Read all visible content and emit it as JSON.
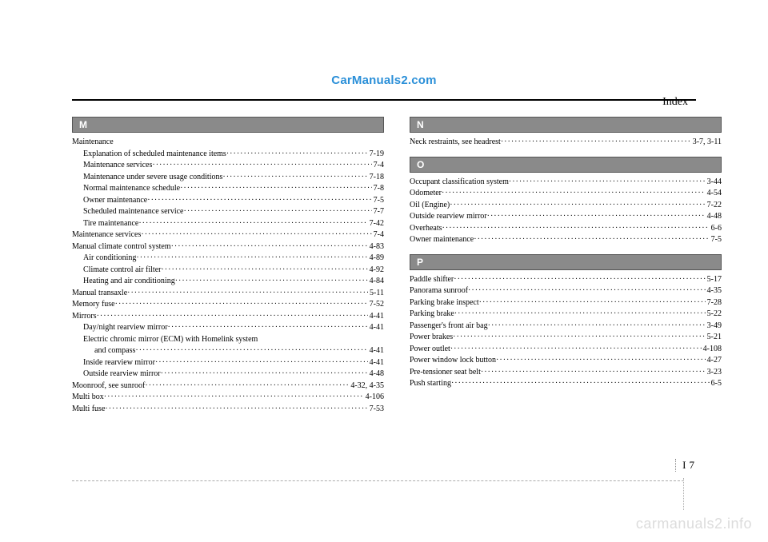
{
  "watermark_top": "CarManuals2.com",
  "index_label": "Index",
  "page_num_chapter": "I",
  "page_num_page": "7",
  "watermark_bottom": "carmanuals2.info",
  "left": {
    "sections": [
      {
        "letter": "M",
        "entries": [
          {
            "indent": 0,
            "label": "Maintenance",
            "page": ""
          },
          {
            "indent": 1,
            "label": "Explanation of scheduled maintenance items",
            "page": "7-19"
          },
          {
            "indent": 1,
            "label": "Maintenance services",
            "page": "7-4"
          },
          {
            "indent": 1,
            "label": "Maintenance under severe usage conditions",
            "page": "7-18"
          },
          {
            "indent": 1,
            "label": "Normal maintenance schedule",
            "page": "7-8"
          },
          {
            "indent": 1,
            "label": "Owner maintenance",
            "page": "7-5"
          },
          {
            "indent": 1,
            "label": "Scheduled maintenance service",
            "page": "7-7"
          },
          {
            "indent": 1,
            "label": "Tire maintenance",
            "page": "7-42"
          },
          {
            "indent": 0,
            "label": "Maintenance services",
            "page": "7-4"
          },
          {
            "indent": 0,
            "label": "Manual climate control system",
            "page": "4-83"
          },
          {
            "indent": 1,
            "label": "Air conditioning",
            "page": "4-89"
          },
          {
            "indent": 1,
            "label": "Climate control air filter",
            "page": "4-92"
          },
          {
            "indent": 1,
            "label": "Heating and air conditioning",
            "page": "4-84"
          },
          {
            "indent": 0,
            "label": "Manual transaxle",
            "page": "5-11"
          },
          {
            "indent": 0,
            "label": "Memory fuse",
            "page": "7-52"
          },
          {
            "indent": 0,
            "label": "Mirrors",
            "page": "4-41"
          },
          {
            "indent": 1,
            "label": "Day/night rearview mirror",
            "page": "4-41"
          },
          {
            "indent": 1,
            "label": "Electric chromic mirror (ECM) with Homelink system",
            "page": ""
          },
          {
            "indent": 2,
            "label": "and compass",
            "page": "4-41"
          },
          {
            "indent": 1,
            "label": "Inside rearview mirror",
            "page": "4-41"
          },
          {
            "indent": 1,
            "label": "Outside rearview mirror",
            "page": "4-48"
          },
          {
            "indent": 0,
            "label": "Moonroof, see sunroof",
            "page": "4-32, 4-35"
          },
          {
            "indent": 0,
            "label": "Multi box",
            "page": "4-106"
          },
          {
            "indent": 0,
            "label": "Multi fuse",
            "page": "7-53"
          }
        ]
      }
    ]
  },
  "right": {
    "sections": [
      {
        "letter": "N",
        "entries": [
          {
            "indent": 0,
            "label": "Neck restraints, see headrest",
            "page": "3-7, 3-11"
          }
        ]
      },
      {
        "letter": "O",
        "entries": [
          {
            "indent": 0,
            "label": "Occupant classification system",
            "page": "3-44"
          },
          {
            "indent": 0,
            "label": "Odometer",
            "page": "4-54"
          },
          {
            "indent": 0,
            "label": "Oil (Engine)",
            "page": "7-22"
          },
          {
            "indent": 0,
            "label": "Outside rearview mirror",
            "page": "4-48"
          },
          {
            "indent": 0,
            "label": "Overheats",
            "page": "6-6"
          },
          {
            "indent": 0,
            "label": "Owner maintenance",
            "page": "7-5"
          }
        ]
      },
      {
        "letter": "P",
        "entries": [
          {
            "indent": 0,
            "label": "Paddle shifter",
            "page": "5-17"
          },
          {
            "indent": 0,
            "label": "Panorama sunroof",
            "page": "4-35"
          },
          {
            "indent": 0,
            "label": "Parking brake inspect",
            "page": "7-28"
          },
          {
            "indent": 0,
            "label": "Parking brake",
            "page": "5-22"
          },
          {
            "indent": 0,
            "label": "Passenger's front air bag",
            "page": "3-49"
          },
          {
            "indent": 0,
            "label": "Power brakes",
            "page": "5-21"
          },
          {
            "indent": 0,
            "label": "Power outlet",
            "page": "4-108"
          },
          {
            "indent": 0,
            "label": "Power window lock button",
            "page": "4-27"
          },
          {
            "indent": 0,
            "label": "Pre-tensioner seat belt",
            "page": "3-23"
          },
          {
            "indent": 0,
            "label": "Push starting",
            "page": "6-5"
          }
        ]
      }
    ]
  }
}
